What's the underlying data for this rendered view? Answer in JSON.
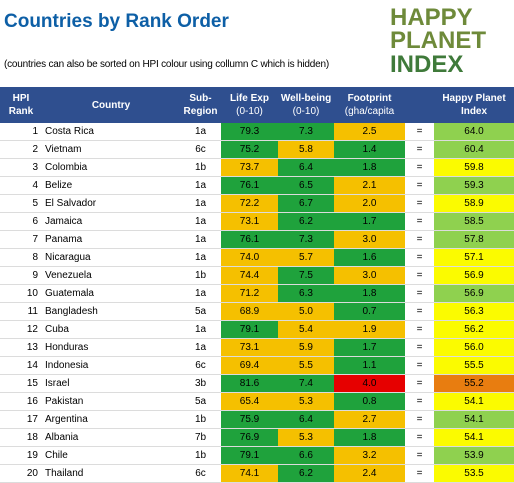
{
  "title": "Countries by Rank Order",
  "subtitle": "(countries can also be sorted on HPI colour using collumn C which is hidden)",
  "logo": {
    "line1": "HAPPY",
    "line2": "PLANET",
    "line3": "INDEX"
  },
  "headers": {
    "rank": "HPI Rank",
    "country": "Country",
    "region": "Sub-Region",
    "life_exp": "Life Exp",
    "life_exp_unit": "(0-10)",
    "wellbeing": "Well-being",
    "wellbeing_unit": "(0-10)",
    "footprint": "Footprint",
    "footprint_unit": "(gha/capita",
    "hpi": "Happy Planet Index"
  },
  "colors": {
    "green": "#1fa23c",
    "yellow": "#f5c000",
    "red": "#e60000",
    "hpi_green": "#8fd14f",
    "hpi_yellow": "#fbfb00",
    "hpi_orange": "#e87d10",
    "header_bg": "#2f4f8f",
    "title_color": "#0d5fa6"
  },
  "rows": [
    {
      "rank": "1",
      "country": "Costa Rica",
      "region": "1a",
      "life": "79.3",
      "life_c": "green",
      "well": "7.3",
      "well_c": "green",
      "foot": "2.5",
      "foot_c": "yellow",
      "eq": "=",
      "hpi": "64.0",
      "hpi_c": "hgreen"
    },
    {
      "rank": "2",
      "country": "Vietnam",
      "region": "6c",
      "life": "75.2",
      "life_c": "green",
      "well": "5.8",
      "well_c": "yellow",
      "foot": "1.4",
      "foot_c": "green",
      "eq": "=",
      "hpi": "60.4",
      "hpi_c": "hgreen"
    },
    {
      "rank": "3",
      "country": "Colombia",
      "region": "1b",
      "life": "73.7",
      "life_c": "yellow",
      "well": "6.4",
      "well_c": "green",
      "foot": "1.8",
      "foot_c": "green",
      "eq": "=",
      "hpi": "59.8",
      "hpi_c": "hyellow"
    },
    {
      "rank": "4",
      "country": "Belize",
      "region": "1a",
      "life": "76.1",
      "life_c": "green",
      "well": "6.5",
      "well_c": "green",
      "foot": "2.1",
      "foot_c": "yellow",
      "eq": "=",
      "hpi": "59.3",
      "hpi_c": "hgreen"
    },
    {
      "rank": "5",
      "country": "El Salvador",
      "region": "1a",
      "life": "72.2",
      "life_c": "yellow",
      "well": "6.7",
      "well_c": "green",
      "foot": "2.0",
      "foot_c": "yellow",
      "eq": "=",
      "hpi": "58.9",
      "hpi_c": "hyellow"
    },
    {
      "rank": "6",
      "country": "Jamaica",
      "region": "1a",
      "life": "73.1",
      "life_c": "yellow",
      "well": "6.2",
      "well_c": "green",
      "foot": "1.7",
      "foot_c": "green",
      "eq": "=",
      "hpi": "58.5",
      "hpi_c": "hgreen"
    },
    {
      "rank": "7",
      "country": "Panama",
      "region": "1a",
      "life": "76.1",
      "life_c": "green",
      "well": "7.3",
      "well_c": "green",
      "foot": "3.0",
      "foot_c": "yellow",
      "eq": "=",
      "hpi": "57.8",
      "hpi_c": "hgreen"
    },
    {
      "rank": "8",
      "country": "Nicaragua",
      "region": "1a",
      "life": "74.0",
      "life_c": "yellow",
      "well": "5.7",
      "well_c": "yellow",
      "foot": "1.6",
      "foot_c": "green",
      "eq": "=",
      "hpi": "57.1",
      "hpi_c": "hyellow"
    },
    {
      "rank": "9",
      "country": "Venezuela",
      "region": "1b",
      "life": "74.4",
      "life_c": "yellow",
      "well": "7.5",
      "well_c": "green",
      "foot": "3.0",
      "foot_c": "yellow",
      "eq": "=",
      "hpi": "56.9",
      "hpi_c": "hyellow"
    },
    {
      "rank": "10",
      "country": "Guatemala",
      "region": "1a",
      "life": "71.2",
      "life_c": "yellow",
      "well": "6.3",
      "well_c": "green",
      "foot": "1.8",
      "foot_c": "green",
      "eq": "=",
      "hpi": "56.9",
      "hpi_c": "hgreen"
    },
    {
      "rank": "11",
      "country": "Bangladesh",
      "region": "5a",
      "life": "68.9",
      "life_c": "yellow",
      "well": "5.0",
      "well_c": "yellow",
      "foot": "0.7",
      "foot_c": "green",
      "eq": "=",
      "hpi": "56.3",
      "hpi_c": "hyellow"
    },
    {
      "rank": "12",
      "country": "Cuba",
      "region": "1a",
      "life": "79.1",
      "life_c": "green",
      "well": "5.4",
      "well_c": "yellow",
      "foot": "1.9",
      "foot_c": "yellow",
      "eq": "=",
      "hpi": "56.2",
      "hpi_c": "hyellow"
    },
    {
      "rank": "13",
      "country": "Honduras",
      "region": "1a",
      "life": "73.1",
      "life_c": "yellow",
      "well": "5.9",
      "well_c": "yellow",
      "foot": "1.7",
      "foot_c": "green",
      "eq": "=",
      "hpi": "56.0",
      "hpi_c": "hyellow"
    },
    {
      "rank": "14",
      "country": "Indonesia",
      "region": "6c",
      "life": "69.4",
      "life_c": "yellow",
      "well": "5.5",
      "well_c": "yellow",
      "foot": "1.1",
      "foot_c": "green",
      "eq": "=",
      "hpi": "55.5",
      "hpi_c": "hyellow"
    },
    {
      "rank": "15",
      "country": "Israel",
      "region": "3b",
      "life": "81.6",
      "life_c": "green",
      "well": "7.4",
      "well_c": "green",
      "foot": "4.0",
      "foot_c": "red",
      "eq": "=",
      "hpi": "55.2",
      "hpi_c": "horange"
    },
    {
      "rank": "16",
      "country": "Pakistan",
      "region": "5a",
      "life": "65.4",
      "life_c": "yellow",
      "well": "5.3",
      "well_c": "yellow",
      "foot": "0.8",
      "foot_c": "green",
      "eq": "=",
      "hpi": "54.1",
      "hpi_c": "hyellow"
    },
    {
      "rank": "17",
      "country": "Argentina",
      "region": "1b",
      "life": "75.9",
      "life_c": "green",
      "well": "6.4",
      "well_c": "green",
      "foot": "2.7",
      "foot_c": "yellow",
      "eq": "=",
      "hpi": "54.1",
      "hpi_c": "hgreen"
    },
    {
      "rank": "18",
      "country": "Albania",
      "region": "7b",
      "life": "76.9",
      "life_c": "green",
      "well": "5.3",
      "well_c": "yellow",
      "foot": "1.8",
      "foot_c": "green",
      "eq": "=",
      "hpi": "54.1",
      "hpi_c": "hyellow"
    },
    {
      "rank": "19",
      "country": "Chile",
      "region": "1b",
      "life": "79.1",
      "life_c": "green",
      "well": "6.6",
      "well_c": "green",
      "foot": "3.2",
      "foot_c": "yellow",
      "eq": "=",
      "hpi": "53.9",
      "hpi_c": "hgreen"
    },
    {
      "rank": "20",
      "country": "Thailand",
      "region": "6c",
      "life": "74.1",
      "life_c": "yellow",
      "well": "6.2",
      "well_c": "green",
      "foot": "2.4",
      "foot_c": "yellow",
      "eq": "=",
      "hpi": "53.5",
      "hpi_c": "hyellow"
    }
  ]
}
